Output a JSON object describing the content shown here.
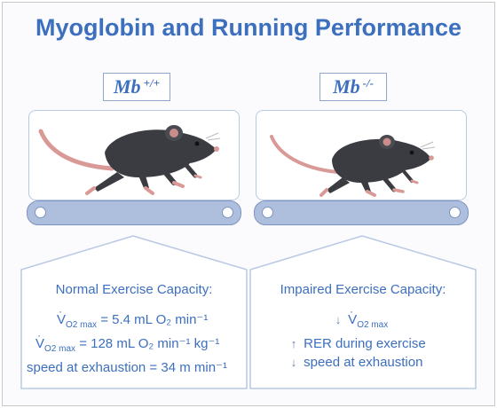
{
  "title": "Myoglobin and Running Performance",
  "left": {
    "genotype": "Mb",
    "genotype_sup": "+/+",
    "heading": "Normal Exercise Capacity:",
    "vo2_symbol": "V",
    "vo2_sub": "O2 max",
    "line1_value": " =  5.4 mL O₂ min⁻¹",
    "line2_value": " = 128 mL O₂ min⁻¹ kg⁻¹",
    "line3": "speed at exhaustion = 34 m  min⁻¹"
  },
  "right": {
    "genotype": "Mb",
    "genotype_sup": "-/-",
    "heading": "Impaired Exercise Capacity:",
    "down_arrow": "↓",
    "up_arrow": "↑",
    "vo2_symbol": "V",
    "vo2_sub": "O2 max",
    "line2": "RER during exercise",
    "line3": "speed at exhaustion"
  },
  "colors": {
    "accent": "#3c6fbe",
    "mouse_body": "#3b3c42",
    "tail": "#d99a97",
    "treadmill": "#aebfde"
  }
}
